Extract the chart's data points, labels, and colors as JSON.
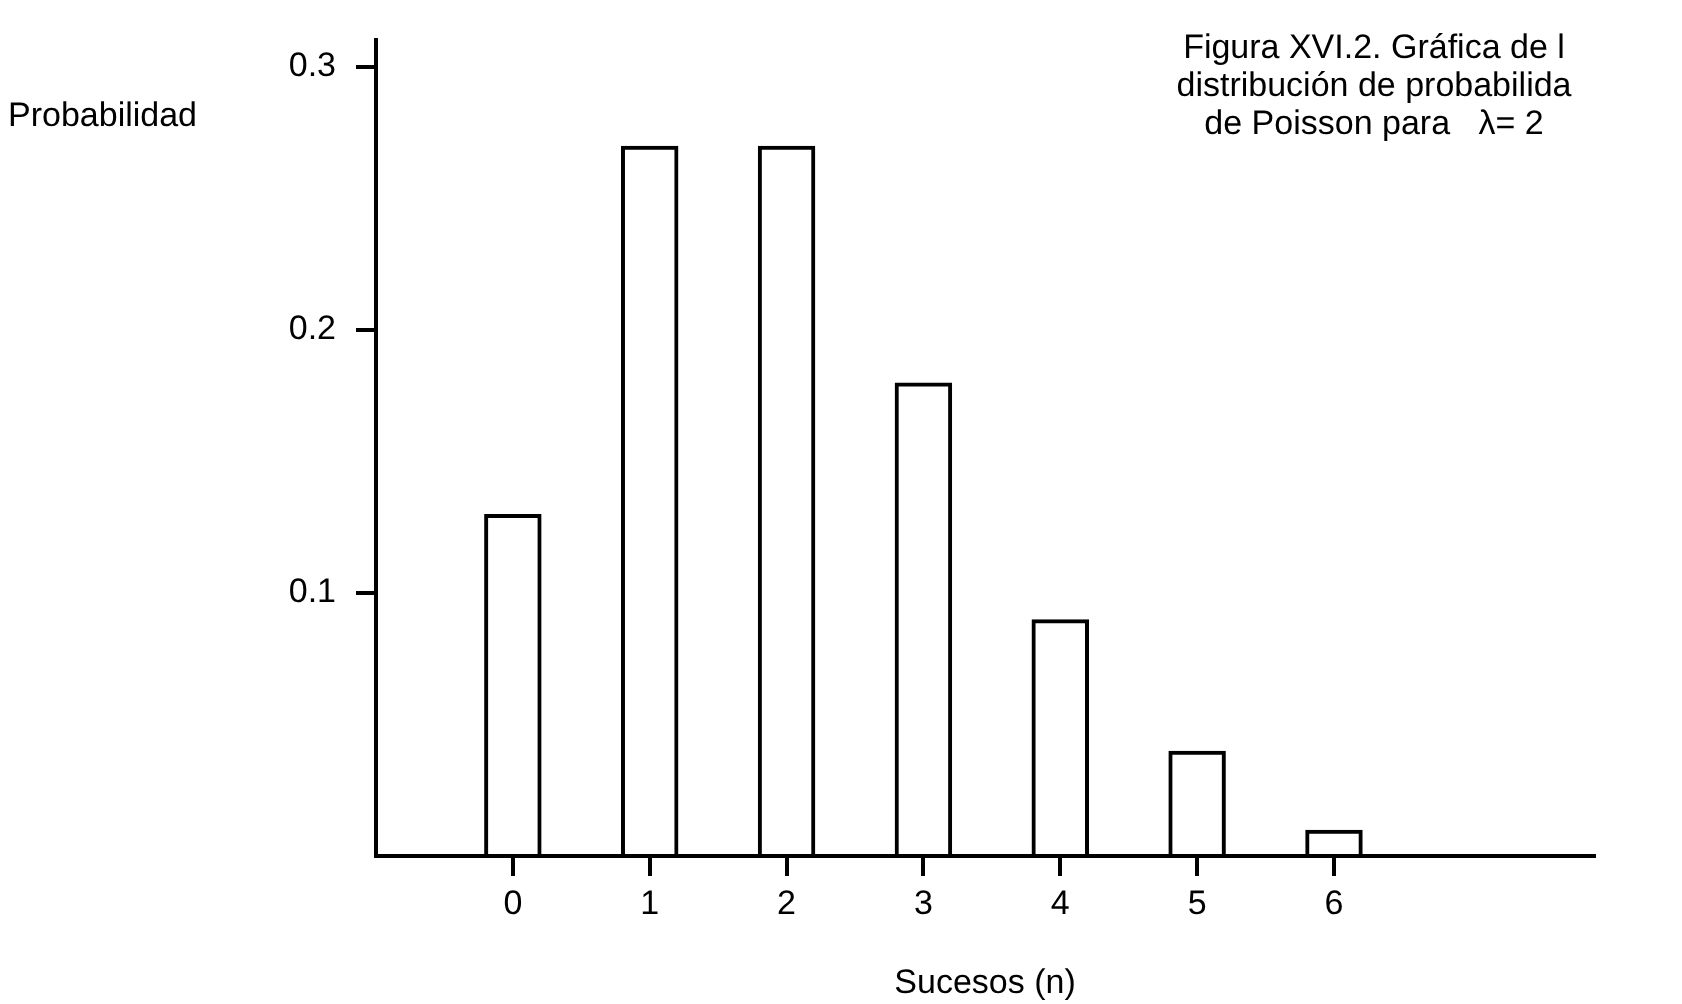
{
  "chart_data": {
    "type": "bar",
    "title": "Figura XVI.2. Gráfica de l\ndistribución de probabilida\nde Poisson para   λ= 2",
    "xlabel": "Sucesos (n)",
    "ylabel": "Probabilidad",
    "x": [
      0,
      1,
      2,
      3,
      4,
      5,
      6
    ],
    "values": [
      0.13,
      0.27,
      0.27,
      0.18,
      0.09,
      0.04,
      0.01
    ],
    "color": "#000000",
    "xlim": [
      -1,
      7.9
    ],
    "xticks": [
      0,
      1,
      2,
      3,
      4,
      5,
      6
    ],
    "ylim": [
      0,
      0.31
    ],
    "yticks": [
      0.1,
      0.2,
      0.3
    ],
    "grid": false,
    "legend": false
  }
}
